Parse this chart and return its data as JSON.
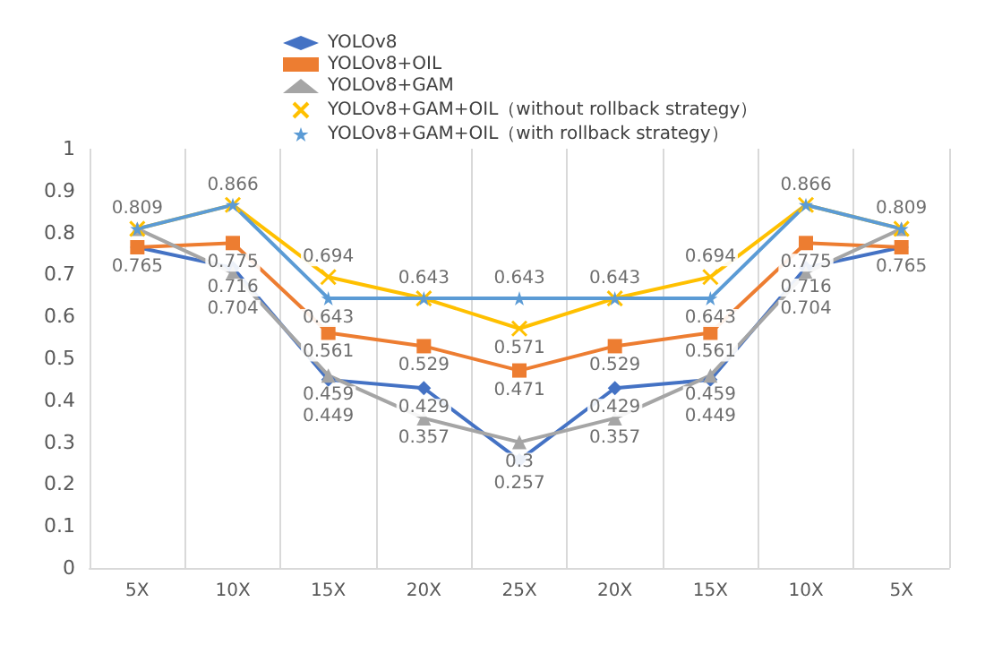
{
  "chart_data": {
    "type": "line",
    "categories": [
      "5X",
      "10X",
      "15X",
      "20X",
      "25X",
      "20X",
      "15X",
      "10X",
      "5X"
    ],
    "series": [
      {
        "name": "YOLOv8",
        "color": "#4472c4",
        "marker": "diamond",
        "values": [
          0.765,
          0.716,
          0.449,
          0.429,
          0.257,
          0.429,
          0.449,
          0.716,
          0.765
        ],
        "value_labels": [
          null,
          "0.716",
          "0.449",
          "0.429",
          "0.257",
          "0.429",
          "0.449",
          "0.716",
          null
        ]
      },
      {
        "name": "YOLOv8+OIL",
        "color": "#ed7d31",
        "marker": "square",
        "values": [
          0.765,
          0.775,
          0.561,
          0.529,
          0.471,
          0.529,
          0.561,
          0.775,
          0.765
        ],
        "value_labels": [
          "0.765",
          "0.775",
          "0.561",
          "0.529",
          "0.471",
          "0.529",
          "0.561",
          "0.775",
          "0.765"
        ]
      },
      {
        "name": "YOLOv8+GAM",
        "color": "#a5a5a5",
        "marker": "triangle",
        "values": [
          0.809,
          0.704,
          0.459,
          0.357,
          0.3,
          0.357,
          0.459,
          0.704,
          0.809
        ],
        "value_labels": [
          null,
          "0.704",
          "0.459",
          "0.357",
          "0.3",
          "0.357",
          "0.459",
          "0.704",
          null
        ]
      },
      {
        "name": "YOLOv8+GAM+OIL（without rollback strategy）",
        "color": "#ffc000",
        "marker": "cross",
        "values": [
          0.809,
          0.866,
          0.694,
          0.643,
          0.571,
          0.643,
          0.694,
          0.866,
          0.809
        ],
        "value_labels": [
          "0.809",
          "0.866",
          "0.694",
          null,
          "0.571",
          null,
          "0.694",
          "0.866",
          "0.809"
        ]
      },
      {
        "name": "YOLOv8+GAM+OIL（with rollback strategy）",
        "color": "#5b9bd5",
        "marker": "star",
        "values": [
          0.809,
          0.866,
          0.643,
          0.643,
          0.643,
          0.643,
          0.643,
          0.866,
          0.809
        ],
        "value_labels": [
          null,
          null,
          "0.643",
          "0.643",
          "0.643",
          "0.643",
          "0.643",
          null,
          null
        ]
      }
    ],
    "ylim": [
      0,
      1
    ],
    "yticks": [
      0,
      0.1,
      0.2,
      0.3,
      0.4,
      0.5,
      0.6,
      0.7,
      0.8,
      0.9,
      1
    ],
    "grid": "x",
    "legend": "top"
  }
}
